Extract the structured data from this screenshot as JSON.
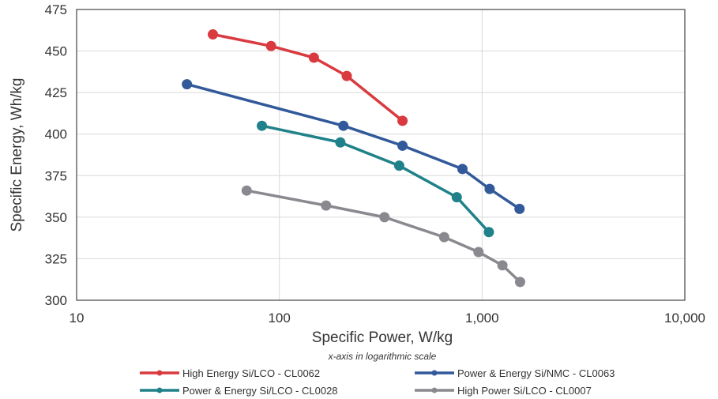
{
  "chart_data": {
    "type": "line",
    "xlabel": "Specific Power, W/kg",
    "ylabel": "Specific Energy, Wh/kg",
    "x_note": "x-axis in logarithmic scale",
    "x_scale": "log",
    "xlim": [
      10,
      10000
    ],
    "ylim": [
      300,
      475
    ],
    "x_ticks": [
      10,
      100,
      1000,
      10000
    ],
    "x_tick_labels": [
      "10",
      "100",
      "1,000",
      "10,000"
    ],
    "y_ticks": [
      300,
      325,
      350,
      375,
      400,
      425,
      450,
      475
    ],
    "y_tick_labels": [
      "300",
      "325",
      "350",
      "375",
      "400",
      "425",
      "450",
      "475"
    ],
    "grid": true,
    "legend_position": "bottom",
    "series": [
      {
        "name": "High Energy Si/LCO - CL0062",
        "color": "#d93a3f",
        "points": [
          [
            47,
            460
          ],
          [
            91,
            453
          ],
          [
            148,
            446
          ],
          [
            215,
            435
          ],
          [
            405,
            408
          ]
        ]
      },
      {
        "name": "Power & Energy Si/NMC - CL0063",
        "color": "#325999",
        "points": [
          [
            35,
            430
          ],
          [
            207,
            405
          ],
          [
            405,
            393
          ],
          [
            800,
            379
          ],
          [
            1090,
            367
          ],
          [
            1530,
            355
          ]
        ]
      },
      {
        "name": "Power & Energy Si/LCO - CL0028",
        "color": "#1f8189",
        "points": [
          [
            82,
            405
          ],
          [
            200,
            395
          ],
          [
            390,
            381
          ],
          [
            750,
            362
          ],
          [
            1080,
            341
          ]
        ]
      },
      {
        "name": "High Power Si/LCO - CL0007",
        "color": "#8a898f",
        "points": [
          [
            69,
            366
          ],
          [
            170,
            357
          ],
          [
            330,
            350
          ],
          [
            650,
            338
          ],
          [
            960,
            329
          ],
          [
            1260,
            321
          ],
          [
            1540,
            311
          ]
        ]
      }
    ]
  }
}
